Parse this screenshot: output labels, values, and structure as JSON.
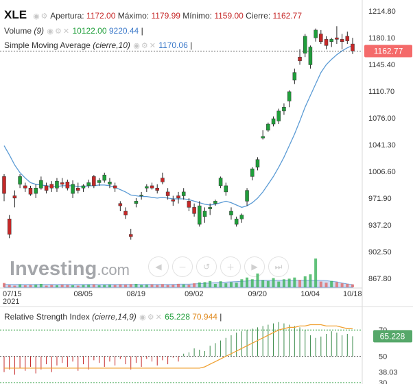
{
  "header": {
    "symbol": "XLE",
    "open_label": "Apertura:",
    "open": "1172.00",
    "high_label": "Máximo:",
    "high": "1179.99",
    "low_label": "Mínimo:",
    "low": "1159.00",
    "close_label": "Cierre:",
    "close": "1162.77"
  },
  "volume_legend": {
    "label": "Volume",
    "param": "(9)",
    "v1": "10122.00",
    "v2": "9220.44"
  },
  "sma_legend": {
    "label": "Simple Moving Average",
    "param": "(cierre,10)",
    "value": "1170.06"
  },
  "rsi_legend": {
    "label": "Relative Strength Index",
    "param": "(cierre,14,9)",
    "v1": "65.228",
    "v2": "70.944"
  },
  "price_tag": "1162.77",
  "rsi_tag": "65.228",
  "watermark": {
    "main": "Investing",
    "suffix": ".com"
  },
  "colors": {
    "up": "#1f9e3a",
    "down": "#c62828",
    "sma": "#5b9bd5",
    "rsi_signal": "#f0a030",
    "rsi_up": "#3a8a4a",
    "rsi_down": "#c62828"
  },
  "icons": [
    "eye-icon",
    "gear-icon",
    "close-icon",
    "scroll-left-icon",
    "zoom-out-icon",
    "reset-icon",
    "zoom-in-icon",
    "scroll-right-icon",
    "scroll-end-icon",
    "settings-icon",
    "fullscreen-icon"
  ],
  "chart_data": [
    {
      "type": "candlestick",
      "title": "XLE",
      "x_ticks": [
        "07/15\n2021",
        "08/05",
        "08/19",
        "09/02",
        "09/20",
        "10/04",
        "10/18"
      ],
      "y_ticks": [
        1214.8,
        1180.1,
        1145.4,
        1110.7,
        1076.0,
        1041.3,
        1006.6,
        971.9,
        937.2,
        902.5,
        867.8
      ],
      "ylim": [
        858,
        1220
      ],
      "last_price": 1162.77,
      "ohlc": [
        [
          1000,
          1003,
          968,
          978
        ],
        [
          945,
          950,
          920,
          925
        ],
        [
          975,
          982,
          960,
          972
        ],
        [
          990,
          1003,
          985,
          1000
        ],
        [
          988,
          992,
          980,
          985
        ],
        [
          985,
          988,
          975,
          977
        ],
        [
          978,
          990,
          972,
          985
        ],
        [
          985,
          1000,
          983,
          995
        ],
        [
          988,
          992,
          978,
          982
        ],
        [
          990,
          994,
          980,
          985
        ],
        [
          985,
          998,
          980,
          994
        ],
        [
          992,
          998,
          985,
          990
        ],
        [
          993,
          996,
          982,
          985
        ],
        [
          978,
          995,
          972,
          990
        ],
        [
          985,
          992,
          978,
          982
        ],
        [
          985,
          990,
          980,
          988
        ],
        [
          988,
          996,
          985,
          992
        ],
        [
          1000,
          1002,
          985,
          988
        ],
        [
          992,
          998,
          988,
          995
        ],
        [
          995,
          1005,
          992,
          1002
        ],
        [
          990,
          998,
          985,
          993
        ],
        [
          988,
          992,
          980,
          985
        ],
        [
          965,
          968,
          955,
          962
        ],
        [
          955,
          960,
          945,
          950
        ],
        [
          925,
          932,
          918,
          922
        ],
        [
          965,
          972,
          960,
          968
        ],
        [
          975,
          980,
          970,
          976
        ],
        [
          985,
          990,
          980,
          987
        ],
        [
          988,
          992,
          983,
          985
        ],
        [
          985,
          990,
          978,
          982
        ],
        [
          998,
          1005,
          990,
          993
        ],
        [
          980,
          985,
          970,
          975
        ],
        [
          970,
          975,
          962,
          968
        ],
        [
          975,
          980,
          965,
          972
        ],
        [
          975,
          985,
          970,
          980
        ],
        [
          968,
          972,
          955,
          960
        ],
        [
          960,
          965,
          948,
          952
        ],
        [
          938,
          968,
          935,
          962
        ],
        [
          948,
          960,
          940,
          955
        ],
        [
          958,
          965,
          950,
          960
        ],
        [
          965,
          970,
          962,
          968
        ],
        [
          988,
          1000,
          985,
          998
        ],
        [
          980,
          992,
          975,
          988
        ],
        [
          950,
          960,
          944,
          955
        ],
        [
          938,
          948,
          935,
          945
        ],
        [
          945,
          952,
          940,
          950
        ],
        [
          968,
          985,
          962,
          982
        ],
        [
          1000,
          1012,
          995,
          1010
        ],
        [
          1012,
          1025,
          1008,
          1022
        ],
        [
          1050,
          1060,
          1048,
          1052
        ],
        [
          1060,
          1070,
          1058,
          1068
        ],
        [
          1068,
          1078,
          1065,
          1075
        ],
        [
          1072,
          1088,
          1068,
          1085
        ],
        [
          1085,
          1095,
          1080,
          1090
        ],
        [
          1098,
          1112,
          1090,
          1110
        ],
        [
          1125,
          1140,
          1120,
          1135
        ],
        [
          1155,
          1165,
          1145,
          1150
        ],
        [
          1160,
          1185,
          1155,
          1182
        ],
        [
          1145,
          1170,
          1140,
          1168
        ],
        [
          1180,
          1192,
          1175,
          1190
        ],
        [
          1185,
          1190,
          1172,
          1175
        ],
        [
          1178,
          1182,
          1165,
          1170
        ],
        [
          1175,
          1180,
          1168,
          1178
        ],
        [
          1180,
          1195,
          1172,
          1178
        ],
        [
          1178,
          1185,
          1165,
          1175
        ],
        [
          1182,
          1188,
          1172,
          1176
        ],
        [
          1172,
          1180,
          1159,
          1162.77
        ]
      ],
      "sma": [
        1040,
        1028,
        1015,
        1005,
        998,
        992,
        990,
        989,
        988,
        987,
        987,
        988,
        988,
        988,
        987,
        987,
        988,
        988,
        989,
        989,
        988,
        986,
        983,
        980,
        976,
        975,
        974,
        974,
        973,
        972,
        973,
        972,
        971,
        971,
        971,
        970,
        968,
        966,
        964,
        963,
        964,
        966,
        968,
        966,
        963,
        960,
        962,
        966,
        972,
        980,
        990,
        1000,
        1012,
        1025,
        1040,
        1055,
        1072,
        1090,
        1105,
        1120,
        1135,
        1145,
        1152,
        1158,
        1163,
        1167,
        1170.06
      ],
      "volume": [
        15,
        8,
        6,
        10,
        7,
        8,
        9,
        12,
        6,
        8,
        7,
        9,
        8,
        7,
        6,
        8,
        9,
        10,
        7,
        8,
        9,
        8,
        10,
        9,
        11,
        12,
        8,
        9,
        10,
        8,
        11,
        8,
        9,
        12,
        10,
        9,
        14,
        17,
        18,
        22,
        12,
        21,
        14,
        18,
        16,
        28,
        34,
        28,
        48,
        25,
        22,
        32,
        20,
        28,
        30,
        34,
        26,
        38,
        45,
        100,
        20,
        16,
        22,
        18,
        14,
        12,
        10.1
      ],
      "volume_avg": [
        10,
        10,
        10,
        10,
        10,
        10,
        10,
        10,
        10,
        10,
        10,
        10,
        10,
        10,
        10,
        10,
        10,
        10,
        10,
        10,
        10,
        10,
        10,
        10,
        10,
        10,
        10,
        10,
        10,
        10,
        10,
        10,
        10,
        11,
        11,
        11,
        12,
        13,
        14,
        15,
        16,
        17,
        18,
        19,
        20,
        21,
        22,
        23,
        24,
        25,
        25,
        25,
        25,
        25,
        25,
        25,
        25,
        25,
        25,
        25,
        24,
        23,
        21,
        19,
        15,
        12,
        9.2
      ]
    },
    {
      "type": "rsi",
      "title": "Relative Strength Index",
      "ylim": [
        30,
        80
      ],
      "levels": [
        70,
        50,
        30
      ],
      "y_ticks": [
        70,
        50,
        38.03,
        30
      ],
      "rsi_line": [
        41,
        41,
        41,
        41,
        41,
        41,
        41,
        41,
        41,
        41,
        41,
        41,
        41,
        41,
        41,
        41,
        41,
        41,
        41,
        41,
        41,
        41,
        41,
        41,
        41,
        41,
        41,
        41,
        41,
        41,
        41,
        41,
        41,
        41,
        41,
        41,
        41,
        41,
        42,
        44,
        46,
        48,
        50,
        52,
        54,
        56,
        58,
        60,
        62,
        64,
        66,
        68,
        70,
        71,
        72,
        72,
        73,
        73,
        74,
        74,
        74,
        73,
        73,
        73,
        72,
        71,
        70.944
      ],
      "rsi_hist": [
        38.03,
        40,
        36,
        41,
        39,
        42,
        37,
        40,
        44,
        38,
        43,
        45,
        42,
        46,
        39,
        44,
        40,
        47,
        45,
        42,
        46,
        43,
        48,
        44,
        40,
        45,
        42,
        48,
        46,
        43,
        47,
        44,
        49,
        46,
        52,
        53,
        56,
        55,
        54,
        58,
        60,
        62,
        64,
        66,
        68,
        69,
        70,
        71,
        72,
        73,
        74,
        75,
        76,
        75,
        74,
        73,
        72,
        70,
        66,
        64,
        65,
        67,
        69,
        68,
        66,
        67,
        65.228
      ]
    }
  ]
}
